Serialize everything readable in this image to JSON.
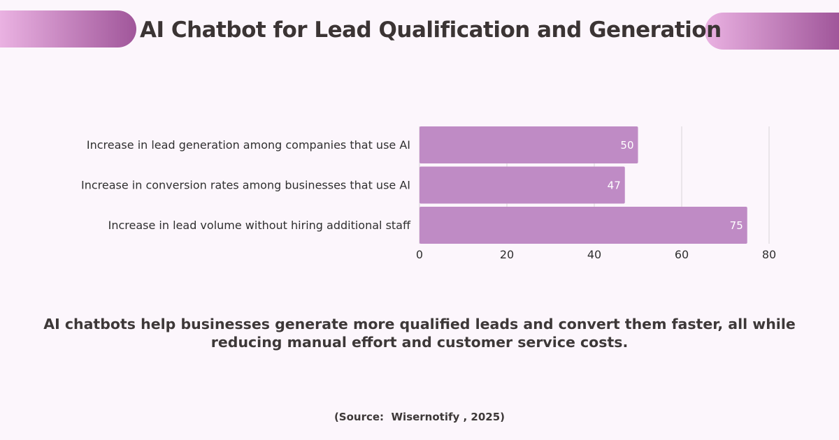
{
  "header": {
    "title": "AI Chatbot for Lead Qualification and Generation"
  },
  "colors": {
    "background": "#fcf6fc",
    "bar": "#bf8bc5",
    "pill_light": "#eab2e2",
    "pill_dark": "#a0569a",
    "text": "#3d3838",
    "gridline": "#d9d4d9"
  },
  "chart_data": {
    "type": "bar",
    "orientation": "horizontal",
    "title": "",
    "xlabel": "",
    "ylabel": "",
    "categories": [
      "Increase in lead generation among companies that use AI",
      "Increase in conversion rates among businesses that use AI",
      "Increase in lead volume without hiring additional staff"
    ],
    "values": [
      50,
      47,
      75
    ],
    "data_labels": [
      "50",
      "47",
      "75"
    ],
    "xlim": [
      0,
      80
    ],
    "xticks": [
      0,
      20,
      40,
      60,
      80
    ],
    "xtick_labels": [
      "0",
      "20",
      "40",
      "60",
      "80"
    ],
    "grid": true,
    "legend": "none"
  },
  "summary": {
    "text": "AI chatbots help businesses generate more qualified leads and convert them faster, all while reducing manual effort and customer service costs."
  },
  "source": {
    "text": "(Source:  Wisernotify , 2025)"
  }
}
